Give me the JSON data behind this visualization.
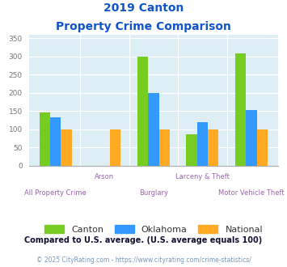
{
  "title_line1": "2019 Canton",
  "title_line2": "Property Crime Comparison",
  "categories": [
    "All Property Crime",
    "Arson",
    "Burglary",
    "Larceny & Theft",
    "Motor Vehicle Theft"
  ],
  "canton": [
    145,
    0,
    300,
    87,
    308
  ],
  "oklahoma": [
    133,
    0,
    200,
    120,
    153
  ],
  "national": [
    100,
    100,
    100,
    100,
    100
  ],
  "canton_color": "#77cc22",
  "oklahoma_color": "#3399ff",
  "national_color": "#ffaa22",
  "title_color": "#1155cc",
  "xlabel_color": "#9966aa",
  "ytick_color": "#777777",
  "legend_text_color": "#333333",
  "footnote1": "Compared to U.S. average. (U.S. average equals 100)",
  "footnote1_color": "#111133",
  "footnote2": "© 2025 CityRating.com - https://www.cityrating.com/crime-statistics/",
  "footnote2_color": "#7799bb",
  "ylim": [
    0,
    360
  ],
  "yticks": [
    0,
    50,
    100,
    150,
    200,
    250,
    300,
    350
  ],
  "bg_color": "#ddeef5",
  "bar_width": 0.22
}
